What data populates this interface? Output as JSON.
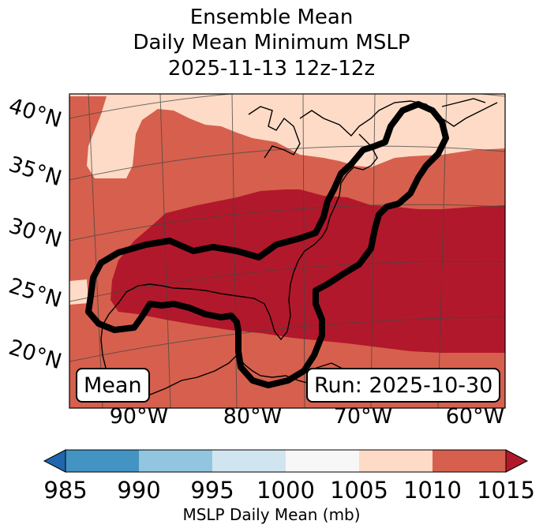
{
  "title": {
    "line1": "Ensemble Mean",
    "line2": "Daily Mean Minimum MSLP",
    "line3": "2025-11-13 12z-12z"
  },
  "map": {
    "lat_labels": [
      "40°N",
      "35°N",
      "30°N",
      "25°N",
      "20°N"
    ],
    "lon_labels": [
      "90°W",
      "80°W",
      "70°W",
      "60°W"
    ],
    "left_box": "Mean",
    "right_box": "Run: 2025-10-30",
    "contour_color": "#000000"
  },
  "colorbar": {
    "label": "MSLP Daily Mean (mb)",
    "ticks": [
      "985",
      "990",
      "995",
      "1000",
      "1005",
      "1010",
      "1015"
    ],
    "colors": {
      "below_985": "#2166ac",
      "985_990": "#4393c3",
      "990_995": "#92c5de",
      "995_1000": "#d1e5f0",
      "1000_1005": "#f7f7f7",
      "1005_1010": "#fddbc7",
      "1010_1015": "#d6604d",
      "above_1015": "#b2182b"
    }
  }
}
